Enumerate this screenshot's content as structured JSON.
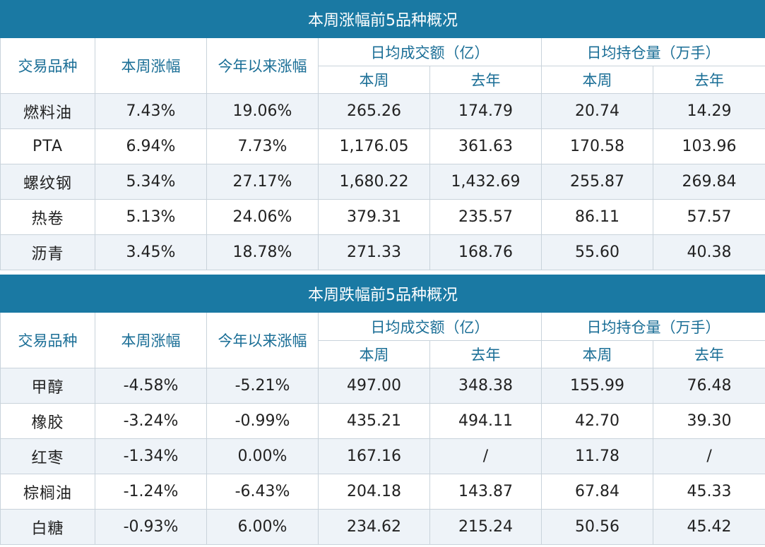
{
  "headers": {
    "col_variety": "交易品种",
    "col_week_change": "本周涨幅",
    "col_ytd_change": "今年以来涨幅",
    "col_turnover_group": "日均成交额（亿）",
    "col_oi_group": "日均持仓量（万手）",
    "sub_this_week": "本周",
    "sub_last_year": "去年"
  },
  "gainers": {
    "title": "本周涨幅前5品种概况",
    "rows": [
      {
        "name": "燃料油",
        "week": "7.43%",
        "ytd": "19.06%",
        "turn_week": "265.26",
        "turn_last": "174.79",
        "oi_week": "20.74",
        "oi_last": "14.29"
      },
      {
        "name": "PTA",
        "week": "6.94%",
        "ytd": "7.73%",
        "turn_week": "1,176.05",
        "turn_last": "361.63",
        "oi_week": "170.58",
        "oi_last": "103.96"
      },
      {
        "name": "螺纹钢",
        "week": "5.34%",
        "ytd": "27.17%",
        "turn_week": "1,680.22",
        "turn_last": "1,432.69",
        "oi_week": "255.87",
        "oi_last": "269.84"
      },
      {
        "name": "热卷",
        "week": "5.13%",
        "ytd": "24.06%",
        "turn_week": "379.31",
        "turn_last": "235.57",
        "oi_week": "86.11",
        "oi_last": "57.57"
      },
      {
        "name": "沥青",
        "week": "3.45%",
        "ytd": "18.78%",
        "turn_week": "271.33",
        "turn_last": "168.76",
        "oi_week": "55.60",
        "oi_last": "40.38"
      }
    ]
  },
  "losers": {
    "title": "本周跌幅前5品种概况",
    "rows": [
      {
        "name": "甲醇",
        "week": "-4.58%",
        "ytd": "-5.21%",
        "turn_week": "497.00",
        "turn_last": "348.38",
        "oi_week": "155.99",
        "oi_last": "76.48"
      },
      {
        "name": "橡胶",
        "week": "-3.24%",
        "ytd": "-0.99%",
        "turn_week": "435.21",
        "turn_last": "494.11",
        "oi_week": "42.70",
        "oi_last": "39.30"
      },
      {
        "name": "红枣",
        "week": "-1.34%",
        "ytd": "0.00%",
        "turn_week": "167.16",
        "turn_last": "/",
        "oi_week": "11.78",
        "oi_last": "/"
      },
      {
        "name": "棕榈油",
        "week": "-1.24%",
        "ytd": "-6.43%",
        "turn_week": "204.18",
        "turn_last": "143.87",
        "oi_week": "67.84",
        "oi_last": "45.33"
      },
      {
        "name": "白糖",
        "week": "-0.93%",
        "ytd": "6.00%",
        "turn_week": "234.62",
        "turn_last": "215.24",
        "oi_week": "50.56",
        "oi_last": "45.42"
      }
    ]
  }
}
